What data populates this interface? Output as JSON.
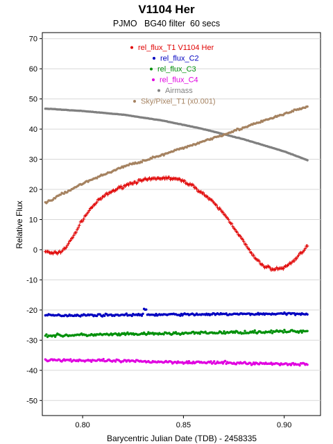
{
  "chart_data": {
    "type": "scatter",
    "title": "V1104 Her",
    "subtitle": "PJMO   BG40 filter  60 secs",
    "xlabel": "Barycentric Julian Date (TDB) - 2458335",
    "ylabel": "Relative Flux",
    "xlim": [
      0.78,
      0.918
    ],
    "ylim": [
      -55,
      72
    ],
    "xticks": [
      "0.80",
      "0.85",
      "0.90"
    ],
    "xtick_values": [
      0.8,
      0.85,
      0.9
    ],
    "yticks": [
      70,
      60,
      50,
      40,
      30,
      20,
      10,
      0,
      -10,
      -20,
      -30,
      -40,
      -50
    ],
    "grid": "horizontal",
    "legend_position": "top-center",
    "x_start": 0.7815,
    "x_end": 0.9115,
    "series": [
      {
        "name": "rel_flux_T1 V1104 Her",
        "color": "#e00000",
        "marker": "plus",
        "x": [
          0.7815,
          0.785,
          0.789,
          0.792,
          0.795,
          0.8,
          0.805,
          0.81,
          0.815,
          0.82,
          0.825,
          0.83,
          0.835,
          0.84,
          0.845,
          0.85,
          0.855,
          0.86,
          0.865,
          0.87,
          0.875,
          0.88,
          0.885,
          0.89,
          0.895,
          0.9,
          0.905,
          0.9115
        ],
        "y": [
          -0.5,
          -1.3,
          -0.8,
          1.0,
          4.0,
          10.0,
          14.5,
          17.5,
          19.5,
          21.0,
          22.3,
          23.0,
          23.5,
          23.8,
          23.6,
          22.8,
          21.0,
          18.5,
          15.5,
          12.0,
          7.5,
          2.5,
          -2.5,
          -5.5,
          -6.5,
          -6.0,
          -3.5,
          1.3
        ]
      },
      {
        "name": "rel_flux_C2",
        "color": "#0000c0",
        "marker": "dot",
        "x": [
          0.7815,
          0.9115
        ],
        "y": [
          -21.8,
          -21.2
        ]
      },
      {
        "name": "rel_flux_C3",
        "color": "#00900a",
        "marker": "dot",
        "x": [
          0.7815,
          0.9115
        ],
        "y": [
          -28.5,
          -27.0
        ]
      },
      {
        "name": "rel_flux_C4",
        "color": "#e000e0",
        "marker": "dot",
        "x": [
          0.7815,
          0.9115
        ],
        "y": [
          -36.5,
          -38.0
        ]
      },
      {
        "name": "Airmass",
        "color": "#808080",
        "marker": "dot",
        "x": [
          0.7815,
          0.8,
          0.82,
          0.84,
          0.86,
          0.88,
          0.9,
          0.9115
        ],
        "y": [
          46.8,
          46.0,
          44.8,
          42.8,
          40.0,
          36.6,
          32.6,
          29.7
        ]
      },
      {
        "name": "Sky/Pixel_T1  (x0.001)",
        "color": "#a58260",
        "marker": "dot",
        "x": [
          0.7815,
          0.8,
          0.82,
          0.84,
          0.86,
          0.88,
          0.9,
          0.9115
        ],
        "y": [
          15.5,
          22.0,
          27.5,
          31.5,
          36.0,
          40.5,
          45.0,
          47.5
        ]
      }
    ]
  }
}
